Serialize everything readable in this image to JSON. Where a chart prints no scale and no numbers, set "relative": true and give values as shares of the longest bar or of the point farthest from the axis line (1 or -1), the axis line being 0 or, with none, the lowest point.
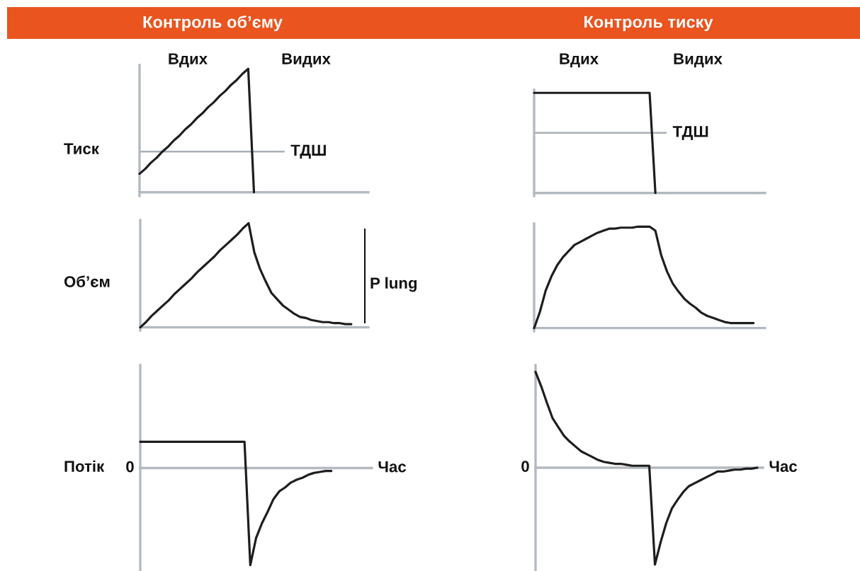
{
  "chart_data": [
    {
      "type": "line",
      "title": "Контроль об’єму",
      "ylabel": "Тиск",
      "relative": true,
      "annotations": [
        "Вдих",
        "Видих"
      ],
      "ref_lines": [
        {
          "axis": "y",
          "value": 0.33,
          "label": "ТДШ",
          "color": "#a9afb7"
        }
      ],
      "categories": [
        null,
        null,
        null,
        null,
        null,
        null,
        null,
        null,
        null,
        null,
        null,
        null,
        null,
        null,
        null,
        null,
        null,
        null,
        null,
        null,
        null,
        null,
        null,
        null,
        null,
        null,
        null,
        null,
        null,
        null,
        null,
        null,
        null,
        null,
        null,
        null,
        null,
        null,
        null,
        null,
        null
      ],
      "series": [
        {
          "color": "#1e1e1e",
          "values": [
            0.15,
            0.19,
            0.24,
            0.28,
            0.33,
            0.37,
            0.42,
            0.46,
            0.51,
            0.55,
            0.6,
            0.64,
            0.69,
            0.73,
            0.78,
            0.82,
            0.87,
            0.91,
            0.96,
            1.0,
            0,
            null,
            null,
            null,
            null,
            null,
            null,
            null,
            null,
            null,
            null,
            null,
            null,
            null,
            null,
            null,
            null,
            null,
            null,
            null,
            null
          ]
        }
      ]
    },
    {
      "type": "line",
      "title": "Контроль тиску",
      "relative": true,
      "annotations": [
        "Вдих",
        "Видих"
      ],
      "ref_lines": [
        {
          "axis": "y",
          "value": 0.6,
          "label": "ТДШ",
          "color": "#a9afb7"
        }
      ],
      "categories": [
        null,
        null,
        null,
        null,
        null,
        null,
        null,
        null,
        null,
        null,
        null,
        null,
        null,
        null,
        null,
        null,
        null,
        null,
        null,
        null,
        null,
        null,
        null,
        null,
        null,
        null,
        null,
        null,
        null,
        null,
        null,
        null,
        null,
        null,
        null,
        null,
        null,
        null,
        null,
        null,
        null
      ],
      "series": [
        {
          "color": "#1e1e1e",
          "values": [
            1,
            1,
            1,
            1,
            1,
            1,
            1,
            1,
            1,
            1,
            1,
            1,
            1,
            1,
            1,
            1,
            1,
            1,
            1,
            1,
            1,
            0,
            null,
            null,
            null,
            null,
            null,
            null,
            null,
            null,
            null,
            null,
            null,
            null,
            null,
            null,
            null,
            null,
            null,
            null,
            null
          ]
        }
      ]
    },
    {
      "type": "line",
      "ylabel": "Об’єм",
      "relative": true,
      "annotations": [
        "P lung"
      ],
      "categories": [
        null,
        null,
        null,
        null,
        null,
        null,
        null,
        null,
        null,
        null,
        null,
        null,
        null,
        null,
        null,
        null,
        null,
        null,
        null,
        null,
        null,
        null,
        null,
        null,
        null,
        null,
        null,
        null,
        null,
        null,
        null,
        null,
        null,
        null,
        null,
        null,
        null,
        null,
        null,
        null,
        null
      ],
      "series": [
        {
          "color": "#1e1e1e",
          "values": [
            0,
            0.05,
            0.11,
            0.16,
            0.21,
            0.26,
            0.32,
            0.37,
            0.42,
            0.47,
            0.53,
            0.58,
            0.63,
            0.68,
            0.74,
            0.79,
            0.84,
            0.89,
            0.95,
            1.0,
            0.72,
            0.56,
            0.44,
            0.33,
            0.27,
            0.21,
            0.17,
            0.13,
            0.1,
            0.09,
            0.07,
            0.06,
            0.05,
            0.05,
            0.04,
            0.04,
            0.03,
            0.03,
            null,
            null,
            null
          ]
        }
      ]
    },
    {
      "type": "line",
      "relative": true,
      "categories": [
        null,
        null,
        null,
        null,
        null,
        null,
        null,
        null,
        null,
        null,
        null,
        null,
        null,
        null,
        null,
        null,
        null,
        null,
        null,
        null,
        null,
        null,
        null,
        null,
        null,
        null,
        null,
        null,
        null,
        null,
        null,
        null,
        null,
        null,
        null,
        null,
        null,
        null,
        null,
        null,
        null
      ],
      "series": [
        {
          "color": "#1e1e1e",
          "values": [
            0,
            0.16,
            0.37,
            0.51,
            0.62,
            0.7,
            0.76,
            0.82,
            0.85,
            0.88,
            0.91,
            0.94,
            0.96,
            0.98,
            0.98,
            0.99,
            0.99,
            0.99,
            1.0,
            1.0,
            1.0,
            0.96,
            0.72,
            0.56,
            0.44,
            0.36,
            0.29,
            0.24,
            0.2,
            0.15,
            0.12,
            0.1,
            0.08,
            0.06,
            0.05,
            0.05,
            0.05,
            0.05,
            0.05,
            null,
            null
          ]
        }
      ]
    },
    {
      "type": "line",
      "ylabel": "Потік",
      "xlabel": "Час",
      "relative": true,
      "annotations": [
        "0"
      ],
      "categories": [
        null,
        null,
        null,
        null,
        null,
        null,
        null,
        null,
        null,
        null,
        null,
        null,
        null,
        null,
        null,
        null,
        null,
        null,
        null,
        null,
        null,
        null,
        null,
        null,
        null,
        null,
        null,
        null,
        null,
        null,
        null,
        null,
        null,
        null,
        null,
        null,
        null,
        null,
        null,
        null,
        null
      ],
      "series": [
        {
          "color": "#1e1e1e",
          "values": [
            0.27,
            0.27,
            0.27,
            0.27,
            0.27,
            0.27,
            0.27,
            0.27,
            0.27,
            0.27,
            0.27,
            0.27,
            0.27,
            0.27,
            0.27,
            0.27,
            0.27,
            0.27,
            0.27,
            -1,
            -0.72,
            -0.57,
            -0.45,
            -0.32,
            -0.24,
            -0.2,
            -0.15,
            -0.12,
            -0.1,
            -0.07,
            -0.05,
            -0.04,
            -0.03,
            -0.03,
            null,
            null,
            null,
            null,
            null,
            null,
            null
          ]
        }
      ]
    },
    {
      "type": "line",
      "xlabel": "Час",
      "relative": true,
      "annotations": [
        "0"
      ],
      "categories": [
        null,
        null,
        null,
        null,
        null,
        null,
        null,
        null,
        null,
        null,
        null,
        null,
        null,
        null,
        null,
        null,
        null,
        null,
        null,
        null,
        null,
        null,
        null,
        null,
        null,
        null,
        null,
        null,
        null,
        null,
        null,
        null,
        null,
        null,
        null,
        null,
        null,
        null,
        null,
        null,
        null
      ],
      "series": [
        {
          "color": "#1e1e1e",
          "values": [
            0.99,
            0.84,
            0.67,
            0.51,
            0.42,
            0.33,
            0.27,
            0.22,
            0.17,
            0.14,
            0.11,
            0.08,
            0.06,
            0.05,
            0.04,
            0.04,
            0.03,
            0.02,
            0.02,
            0.02,
            0.02,
            -1,
            -0.77,
            -0.57,
            -0.42,
            -0.33,
            -0.25,
            -0.19,
            -0.16,
            -0.13,
            -0.1,
            -0.07,
            -0.04,
            -0.04,
            -0.03,
            -0.02,
            -0.02,
            -0.01,
            -0.01,
            0,
            null
          ]
        }
      ]
    }
  ]
}
